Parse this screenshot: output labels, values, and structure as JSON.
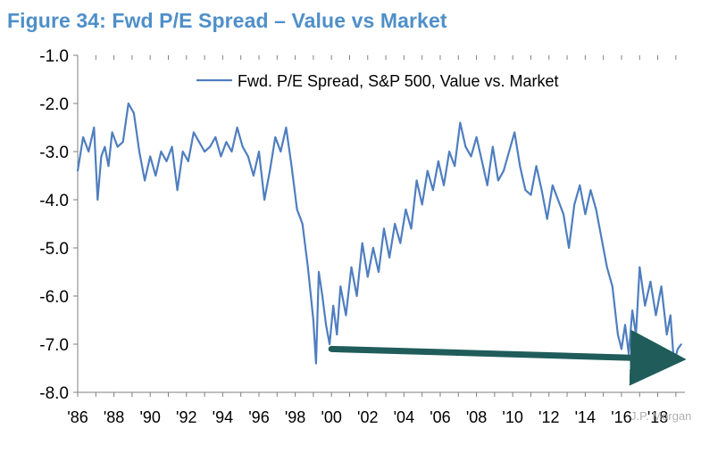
{
  "title": "Figure 34: Fwd P/E Spread – Value vs Market",
  "source": "J.P. Morgan",
  "colors": {
    "title": "#4f8fc8",
    "series": "#4f7ebf",
    "arrow": "#1f5c5a"
  },
  "chart_data": {
    "type": "line",
    "title": "Figure 34: Fwd P/E Spread – Value vs Market",
    "xlabel": "",
    "ylabel": "",
    "xlim": [
      1986,
      2019.5
    ],
    "ylim": [
      -8.0,
      -1.0
    ],
    "y_ticks": [
      -1.0,
      -2.0,
      -3.0,
      -4.0,
      -5.0,
      -6.0,
      -7.0,
      -8.0
    ],
    "y_tick_labels": [
      "-1.0",
      "-2.0",
      "-3.0",
      "-4.0",
      "-5.0",
      "-6.0",
      "-7.0",
      "-8.0"
    ],
    "x_ticks": [
      1986,
      1988,
      1990,
      1992,
      1994,
      1996,
      1998,
      2000,
      2002,
      2004,
      2006,
      2008,
      2010,
      2012,
      2014,
      2016,
      2018
    ],
    "x_tick_labels": [
      "'86",
      "'88",
      "'90",
      "'92",
      "'94",
      "'96",
      "'98",
      "'00",
      "'02",
      "'04",
      "'06",
      "'08",
      "'10",
      "'12",
      "'14",
      "'16",
      "'18"
    ],
    "grid": false,
    "legend": "top-right",
    "series": [
      {
        "name": "Fwd. P/E Spread, S&P 500, Value vs. Market",
        "x": [
          1986.0,
          1986.3,
          1986.6,
          1986.9,
          1987.1,
          1987.3,
          1987.5,
          1987.7,
          1987.9,
          1988.2,
          1988.5,
          1988.8,
          1989.1,
          1989.4,
          1989.7,
          1990.0,
          1990.3,
          1990.6,
          1990.9,
          1991.2,
          1991.5,
          1991.8,
          1992.1,
          1992.4,
          1992.7,
          1993.0,
          1993.3,
          1993.6,
          1993.9,
          1994.2,
          1994.5,
          1994.8,
          1995.1,
          1995.4,
          1995.7,
          1996.0,
          1996.3,
          1996.6,
          1996.9,
          1997.2,
          1997.5,
          1997.8,
          1998.1,
          1998.4,
          1998.7,
          1999.0,
          1999.15,
          1999.3,
          1999.5,
          1999.7,
          1999.9,
          2000.1,
          2000.3,
          2000.5,
          2000.8,
          2001.1,
          2001.4,
          2001.7,
          2002.0,
          2002.3,
          2002.6,
          2002.9,
          2003.2,
          2003.5,
          2003.8,
          2004.1,
          2004.4,
          2004.7,
          2005.0,
          2005.3,
          2005.6,
          2005.9,
          2006.2,
          2006.5,
          2006.8,
          2007.1,
          2007.4,
          2007.7,
          2008.0,
          2008.3,
          2008.6,
          2008.9,
          2009.2,
          2009.5,
          2009.8,
          2010.1,
          2010.4,
          2010.7,
          2011.0,
          2011.3,
          2011.6,
          2011.9,
          2012.2,
          2012.5,
          2012.8,
          2013.1,
          2013.4,
          2013.7,
          2014.0,
          2014.3,
          2014.6,
          2014.9,
          2015.2,
          2015.5,
          2015.8,
          2016.0,
          2016.2,
          2016.4,
          2016.6,
          2016.8,
          2017.0,
          2017.3,
          2017.6,
          2017.9,
          2018.2,
          2018.5,
          2018.7,
          2018.9,
          2019.1,
          2019.3
        ],
        "values": [
          -3.4,
          -2.7,
          -3.0,
          -2.5,
          -4.0,
          -3.1,
          -2.9,
          -3.3,
          -2.6,
          -2.9,
          -2.8,
          -2.0,
          -2.2,
          -3.0,
          -3.6,
          -3.1,
          -3.5,
          -3.0,
          -3.2,
          -2.9,
          -3.8,
          -3.0,
          -3.2,
          -2.6,
          -2.8,
          -3.0,
          -2.9,
          -2.7,
          -3.1,
          -2.8,
          -3.0,
          -2.5,
          -2.9,
          -3.1,
          -3.5,
          -3.0,
          -4.0,
          -3.4,
          -2.7,
          -3.0,
          -2.5,
          -3.3,
          -4.2,
          -4.5,
          -5.4,
          -6.5,
          -7.4,
          -5.5,
          -6.0,
          -6.6,
          -7.0,
          -6.2,
          -6.8,
          -5.8,
          -6.4,
          -5.4,
          -6.0,
          -4.9,
          -5.6,
          -5.0,
          -5.5,
          -4.6,
          -5.2,
          -4.5,
          -4.9,
          -4.2,
          -4.6,
          -3.6,
          -4.1,
          -3.4,
          -3.8,
          -3.2,
          -3.7,
          -3.0,
          -3.3,
          -2.4,
          -2.9,
          -3.1,
          -2.7,
          -3.2,
          -3.7,
          -2.9,
          -3.6,
          -3.4,
          -3.0,
          -2.6,
          -3.3,
          -3.8,
          -3.9,
          -3.3,
          -3.8,
          -4.4,
          -3.7,
          -4.0,
          -4.3,
          -5.0,
          -4.1,
          -3.7,
          -4.3,
          -3.8,
          -4.2,
          -4.8,
          -5.4,
          -5.8,
          -6.8,
          -7.1,
          -6.6,
          -7.2,
          -6.3,
          -6.8,
          -5.4,
          -6.2,
          -5.7,
          -6.4,
          -5.8,
          -6.8,
          -6.4,
          -7.4,
          -7.1,
          -7.0
        ]
      }
    ],
    "annotations": [
      {
        "type": "arrow",
        "from": {
          "x": 2000.0,
          "y": -7.1
        },
        "to": {
          "x": 2018.2,
          "y": -7.3
        }
      }
    ]
  }
}
